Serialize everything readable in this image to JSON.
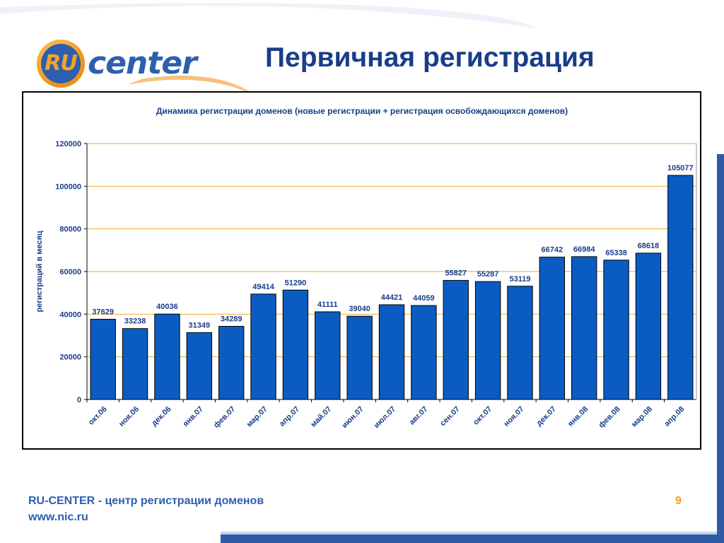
{
  "slide": {
    "title": "Первичная регистрация",
    "page_number": "9"
  },
  "logo": {
    "badge_text": "RU",
    "word": "center"
  },
  "footer": {
    "line1": "RU-CENTER - центр регистрации доменов",
    "line2": "www.nic.ru"
  },
  "colors": {
    "bar": "#0b5cc2",
    "gridline": "#e8b030",
    "title": "#1a3d8a",
    "accent_orange": "#f39a1c",
    "accent_blue": "#2f5aa8"
  },
  "chart_data": {
    "type": "bar",
    "title": "Динамика регистрации доменов (новые регистрации + регистрация освобождающихся доменов)",
    "xlabel": "",
    "ylabel": "регистраций в месяц",
    "ylim": [
      0,
      120000
    ],
    "yticks": [
      0,
      20000,
      40000,
      60000,
      80000,
      100000,
      120000
    ],
    "grid": true,
    "categories": [
      "окт.06",
      "ноя.06",
      "дек.06",
      "янв.07",
      "фев.07",
      "мар.07",
      "апр.07",
      "май.07",
      "июн.07",
      "июл.07",
      "авг.07",
      "сен.07",
      "окт.07",
      "ноя.07",
      "дек.07",
      "янв.08",
      "фев.08",
      "мар.08",
      "апр.08"
    ],
    "values": [
      37629,
      33238,
      40036,
      31349,
      34289,
      49414,
      51290,
      41111,
      39040,
      44421,
      44059,
      55827,
      55287,
      53119,
      66742,
      66984,
      65338,
      68618,
      105077
    ]
  }
}
